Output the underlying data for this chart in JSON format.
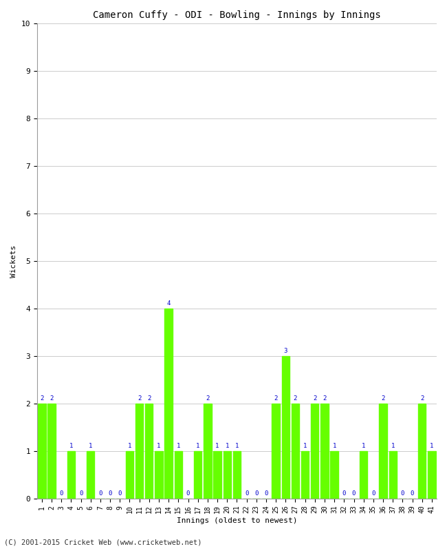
{
  "title": "Cameron Cuffy - ODI - Bowling - Innings by Innings",
  "xlabel": "Innings (oldest to newest)",
  "ylabel": "Wickets",
  "background_color": "#ffffff",
  "bar_color": "#66ff00",
  "label_color": "#0000cc",
  "footer": "(C) 2001-2015 Cricket Web (www.cricketweb.net)",
  "ylim": [
    0,
    10
  ],
  "yticks": [
    0,
    1,
    2,
    3,
    4,
    5,
    6,
    7,
    8,
    9,
    10
  ],
  "innings": [
    1,
    2,
    3,
    4,
    5,
    6,
    7,
    8,
    9,
    10,
    11,
    12,
    13,
    14,
    15,
    16,
    17,
    18,
    19,
    20,
    21,
    22,
    23,
    24,
    25,
    26,
    27,
    28,
    29,
    30,
    31,
    32,
    33,
    34,
    35,
    36,
    37,
    38,
    39,
    40,
    41
  ],
  "wickets": [
    2,
    2,
    0,
    1,
    0,
    1,
    0,
    0,
    0,
    1,
    2,
    2,
    1,
    4,
    1,
    0,
    1,
    2,
    1,
    1,
    1,
    0,
    0,
    0,
    2,
    3,
    2,
    1,
    2,
    2,
    1,
    0,
    0,
    1,
    0,
    2,
    1,
    0,
    0,
    2,
    1
  ],
  "fig_width": 6.5,
  "fig_height": 8.0,
  "dpi": 100
}
